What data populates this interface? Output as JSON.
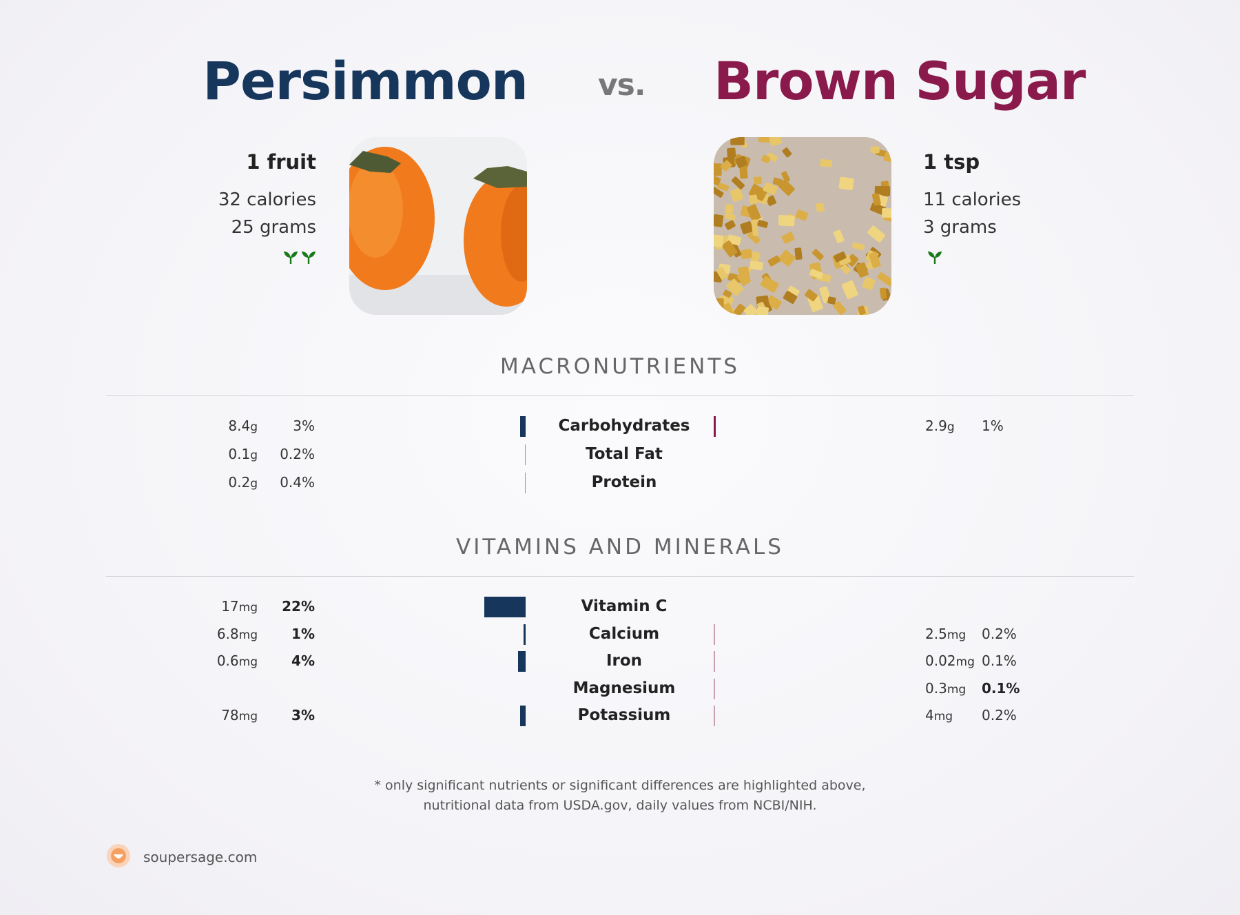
{
  "header": {
    "left_food": "Persimmon",
    "vs": "vs.",
    "right_food": "Brown Sugar"
  },
  "left": {
    "serving": "1 fruit",
    "calories": "32 calories",
    "grams": "25 grams",
    "sprout_count": 2,
    "photo": "persimmon-photo"
  },
  "right": {
    "serving": "1 tsp",
    "calories": "11 calories",
    "grams": "3 grams",
    "sprout_count": 1,
    "photo": "brown-sugar-photo"
  },
  "macros": {
    "title": "MACRONUTRIENTS",
    "rows": [
      {
        "name": "Carbohydrates",
        "left_value": "8.4",
        "left_unit": "g",
        "left_pct": "3%",
        "right_value": "2.9",
        "right_unit": "g",
        "right_pct": "1%",
        "left_level": 3,
        "right_level": 1
      },
      {
        "name": "Total Fat",
        "left_value": "0.1",
        "left_unit": "g",
        "left_pct": "0.2%",
        "left_level": 0.2
      },
      {
        "name": "Protein",
        "left_value": "0.2",
        "left_unit": "g",
        "left_pct": "0.4%",
        "left_level": 0.4
      }
    ]
  },
  "vitamins": {
    "title": "VITAMINS AND MINERALS",
    "rows": [
      {
        "name": "Vitamin C",
        "left_value": "17",
        "left_unit": "mg",
        "left_pct": "22%",
        "left_level": 22
      },
      {
        "name": "Calcium",
        "left_value": "6.8",
        "left_unit": "mg",
        "left_pct": "1%",
        "right_value": "2.5",
        "right_unit": "mg",
        "right_pct": "0.2%",
        "left_level": 1,
        "right_level": 0.2
      },
      {
        "name": "Iron",
        "left_value": "0.6",
        "left_unit": "mg",
        "left_pct": "4%",
        "right_value": "0.02",
        "right_unit": "mg",
        "right_pct": "0.1%",
        "left_level": 4,
        "right_level": 0.1
      },
      {
        "name": "Magnesium",
        "right_value": "0.3",
        "right_unit": "mg",
        "right_pct": "0.1%",
        "right_level": 0.1
      },
      {
        "name": "Potassium",
        "left_value": "78",
        "left_unit": "mg",
        "left_pct": "3%",
        "right_value": "4",
        "right_unit": "mg",
        "right_pct": "0.2%",
        "left_level": 3,
        "right_level": 0.2
      }
    ]
  },
  "footnote": {
    "line1": "* only significant nutrients or significant differences are highlighted above,",
    "line2": "nutritional data from USDA.gov, daily values from NCBI/NIH."
  },
  "brand": {
    "site": "soupersage.com"
  },
  "colors": {
    "left_accent": "#16365c",
    "right_accent": "#8a1a4b",
    "sprout_green": "#1a7a1a"
  }
}
